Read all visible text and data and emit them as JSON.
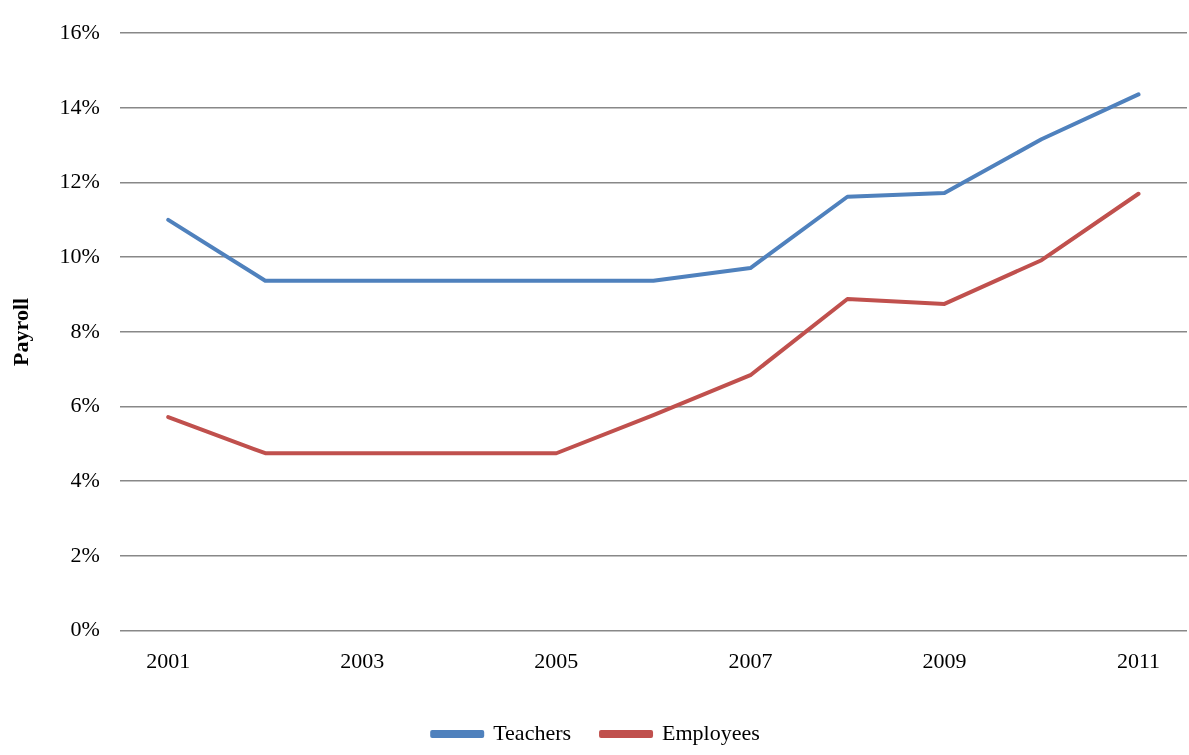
{
  "chart_data": {
    "type": "line",
    "ylabel": "Payroll",
    "categories": [
      "2001",
      null,
      "2003",
      null,
      "2005",
      null,
      "2007",
      null,
      "2009",
      null,
      "2011"
    ],
    "series": [
      {
        "name": "Teachers",
        "color": "#4f81bd",
        "values": [
          11.0,
          9.37,
          9.37,
          9.37,
          9.37,
          9.37,
          9.71,
          11.62,
          11.72,
          13.16,
          14.36
        ]
      },
      {
        "name": "Employees",
        "color": "#c0504d",
        "values": [
          5.72,
          4.75,
          4.75,
          4.75,
          4.75,
          5.77,
          6.84,
          8.88,
          8.75,
          9.92,
          11.7
        ]
      }
    ],
    "ylim": [
      0,
      16
    ],
    "yticks": [
      {
        "value": 0,
        "label": "0%"
      },
      {
        "value": 2,
        "label": "2%"
      },
      {
        "value": 4,
        "label": "4%"
      },
      {
        "value": 6,
        "label": "6%"
      },
      {
        "value": 8,
        "label": "8%"
      },
      {
        "value": 10,
        "label": "10%"
      },
      {
        "value": 12,
        "label": "12%"
      },
      {
        "value": 14,
        "label": "14%"
      },
      {
        "value": 16,
        "label": "16%"
      }
    ],
    "grid": "y",
    "legend": "bottom",
    "marker": "none",
    "line_style": "solid"
  }
}
